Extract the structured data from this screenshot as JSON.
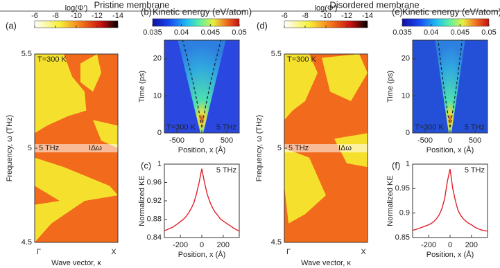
{
  "headers": [
    "Pristine membrane",
    "Disordered membrane"
  ],
  "chart_data": [
    {
      "type": "heatmap",
      "panel_label": "(a)",
      "colorbar_label": "log(Φ′)",
      "clim": [
        -6,
        -14
      ],
      "cticks": [
        -6,
        -8,
        -10,
        -12,
        -14
      ],
      "ylim": [
        4.5,
        5.5
      ],
      "yticks": [
        4.5,
        5,
        5.5
      ],
      "y_label": "Frequency, ω (THz)",
      "x_label": "Wave vector, κ",
      "categories": [
        "Γ",
        "X"
      ],
      "annotations": [
        "T=300 K",
        "5 THz",
        "ΙΔω"
      ]
    },
    {
      "type": "heatmap",
      "panel_label": "(b)",
      "colorbar_label": "Kinetic energy (eV/atom)",
      "clim": [
        0.035,
        0.05
      ],
      "cticks": [
        0.035,
        0.04,
        0.045,
        0.05
      ],
      "ylim": [
        0,
        25
      ],
      "yticks": [
        0,
        10,
        20
      ],
      "xlim": [
        -750,
        750
      ],
      "xticks": [
        -500,
        0,
        500
      ],
      "y_label": "Time (ps)",
      "x_label": "Position, x (Å)",
      "annotations": [
        "T=300 K",
        "5 THz"
      ]
    },
    {
      "type": "line",
      "panel_label": "(c)",
      "color": "#e0202a",
      "x": [
        -350,
        -325,
        -300,
        -275,
        -250,
        -225,
        -200,
        -175,
        -150,
        -125,
        -100,
        -75,
        -50,
        -25,
        0,
        25,
        50,
        75,
        100,
        125,
        150,
        175,
        200,
        225,
        250,
        275,
        300,
        325,
        350
      ],
      "values": [
        0.855,
        0.857,
        0.86,
        0.862,
        0.866,
        0.87,
        0.875,
        0.879,
        0.885,
        0.893,
        0.903,
        0.915,
        0.935,
        0.96,
        0.99,
        0.96,
        0.935,
        0.918,
        0.905,
        0.895,
        0.888,
        0.88,
        0.876,
        0.872,
        0.868,
        0.864,
        0.86,
        0.857,
        0.854
      ],
      "ylim": [
        0.84,
        1
      ],
      "yticks": [
        0.84,
        0.88,
        0.92,
        0.96,
        1
      ],
      "xlim": [
        -350,
        350
      ],
      "xticks": [
        -200,
        0,
        200
      ],
      "y_label": "Normalized KE",
      "x_label": "Position, x (Å)",
      "annotations": [
        "5 THz"
      ]
    },
    {
      "type": "heatmap",
      "panel_label": "(d)",
      "colorbar_label": "log(Φ′)",
      "clim": [
        -6,
        -14
      ],
      "cticks": [
        -6,
        -8,
        -10,
        -12,
        -14
      ],
      "ylim": [
        4.5,
        5.5
      ],
      "yticks": [
        4.5,
        5,
        5.5
      ],
      "y_label": "Frequency, ω (THz)",
      "x_label": "Wave vector, κ",
      "categories": [
        "Γ",
        "X"
      ],
      "annotations": [
        "T=300 K",
        "5 THz",
        "ΙΔω"
      ]
    },
    {
      "type": "heatmap",
      "panel_label": "(e)",
      "colorbar_label": "Kinetic energy (eV/atom)",
      "clim": [
        0.035,
        0.05
      ],
      "cticks": [
        0.035,
        0.04,
        0.045,
        0.05
      ],
      "ylim": [
        0,
        25
      ],
      "yticks": [
        0,
        10,
        20
      ],
      "xlim": [
        -750,
        750
      ],
      "xticks": [
        -500,
        0,
        500
      ],
      "y_label": "Time (ps)",
      "x_label": "Position, x (Å)",
      "annotations": [
        "T=300 K",
        "5 THz"
      ]
    },
    {
      "type": "line",
      "panel_label": "(f)",
      "color": "#e0202a",
      "x": [
        -350,
        -325,
        -300,
        -275,
        -250,
        -225,
        -200,
        -175,
        -150,
        -125,
        -100,
        -75,
        -50,
        -25,
        0,
        25,
        50,
        75,
        100,
        125,
        150,
        175,
        200,
        225,
        250,
        275,
        300,
        325,
        350
      ],
      "values": [
        0.865,
        0.866,
        0.868,
        0.87,
        0.872,
        0.874,
        0.876,
        0.879,
        0.883,
        0.889,
        0.897,
        0.91,
        0.93,
        0.965,
        0.99,
        0.95,
        0.925,
        0.905,
        0.895,
        0.888,
        0.883,
        0.879,
        0.876,
        0.872,
        0.869,
        0.867,
        0.865,
        0.864,
        0.863
      ],
      "ylim": [
        0.85,
        1
      ],
      "yticks": [
        0.85,
        0.9,
        0.95,
        1
      ],
      "xlim": [
        -350,
        350
      ],
      "xticks": [
        -200,
        0,
        200
      ],
      "y_label": "Normalized KE",
      "x_label": "Position, x (Å)",
      "annotations": [
        "5 THz"
      ]
    }
  ]
}
